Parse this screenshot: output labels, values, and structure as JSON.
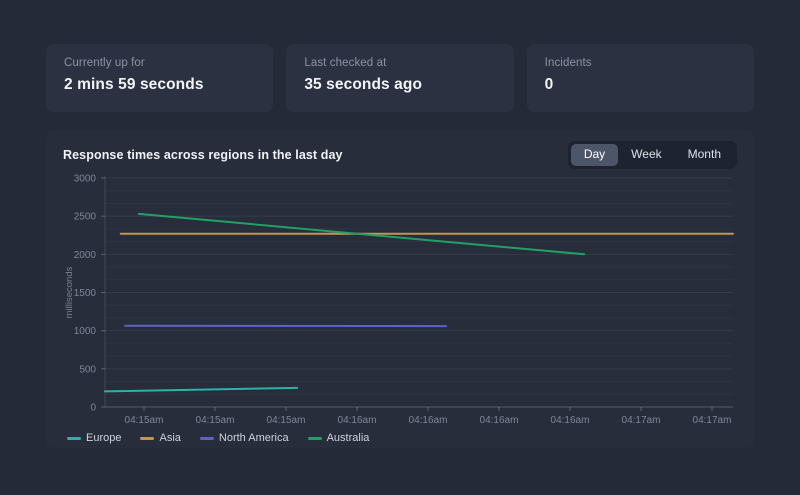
{
  "stats": [
    {
      "label": "Currently up for",
      "value": "2 mins 59 seconds"
    },
    {
      "label": "Last checked at",
      "value": "35 seconds ago"
    },
    {
      "label": "Incidents",
      "value": "0"
    }
  ],
  "chart_panel": {
    "title": "Response times across regions in the last day",
    "range_tabs": [
      {
        "label": "Day",
        "active": true
      },
      {
        "label": "Week",
        "active": false
      },
      {
        "label": "Month",
        "active": false
      }
    ]
  },
  "chart_data": {
    "type": "line",
    "title": "Response times across regions in the last day",
    "xlabel": "",
    "ylabel": "milliseconds",
    "ylim": [
      0,
      3000
    ],
    "y_ticks": [
      0,
      500,
      1000,
      1500,
      2000,
      2500,
      3000
    ],
    "x_ticks": [
      "04:15am",
      "04:15am",
      "04:15am",
      "04:16am",
      "04:16am",
      "04:16am",
      "04:16am",
      "04:17am",
      "04:17am"
    ],
    "grid": "horizontal-only",
    "legend_position": "bottom-left",
    "series": [
      {
        "name": "Europe",
        "color": "#2ab3a8",
        "points": [
          {
            "x": 0.0,
            "y": 205
          },
          {
            "x": 0.306,
            "y": 250
          }
        ]
      },
      {
        "name": "Asia",
        "color": "#c49450",
        "points": [
          {
            "x": 0.025,
            "y": 2270
          },
          {
            "x": 1.0,
            "y": 2270
          }
        ]
      },
      {
        "name": "North America",
        "color": "#5c63c4",
        "points": [
          {
            "x": 0.032,
            "y": 1065
          },
          {
            "x": 0.543,
            "y": 1060
          }
        ]
      },
      {
        "name": "Australia",
        "color": "#21a065",
        "points": [
          {
            "x": 0.054,
            "y": 2530
          },
          {
            "x": 0.763,
            "y": 2000
          }
        ]
      }
    ]
  }
}
